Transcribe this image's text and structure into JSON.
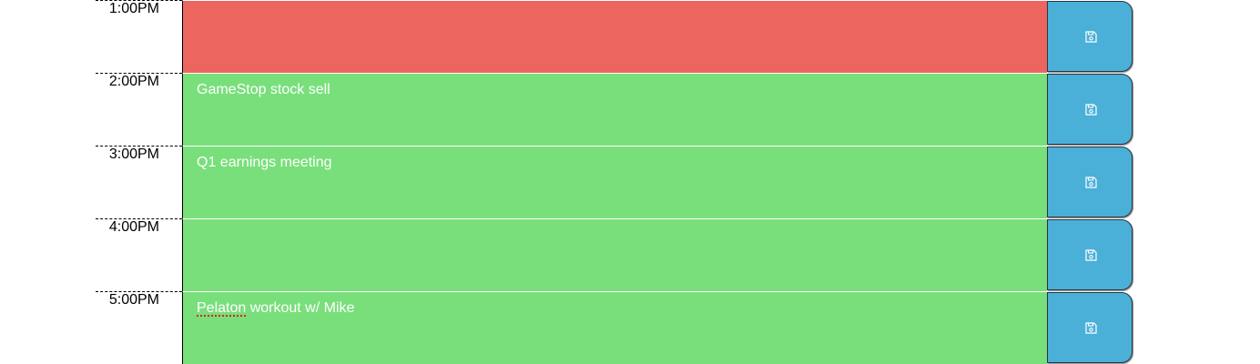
{
  "schedule": {
    "rows": [
      {
        "hour": "1:00PM",
        "text": "",
        "state": "past",
        "save_icon": "floppy-disk-icon"
      },
      {
        "hour": "2:00PM",
        "text": "GameStop stock sell",
        "state": "future",
        "save_icon": "floppy-disk-icon"
      },
      {
        "hour": "3:00PM",
        "text": "Q1 earnings meeting",
        "state": "future",
        "save_icon": "floppy-disk-icon"
      },
      {
        "hour": "4:00PM",
        "text": "",
        "state": "future",
        "save_icon": "floppy-disk-icon"
      },
      {
        "hour": "5:00PM",
        "text_prefix": "Pelaton",
        "text_suffix": " workout w/ Mike",
        "state": "future",
        "save_icon": "floppy-disk-icon"
      }
    ]
  },
  "colors": {
    "past": "#ec665f",
    "future": "#79df7b",
    "save_button": "#4ab0d8"
  }
}
